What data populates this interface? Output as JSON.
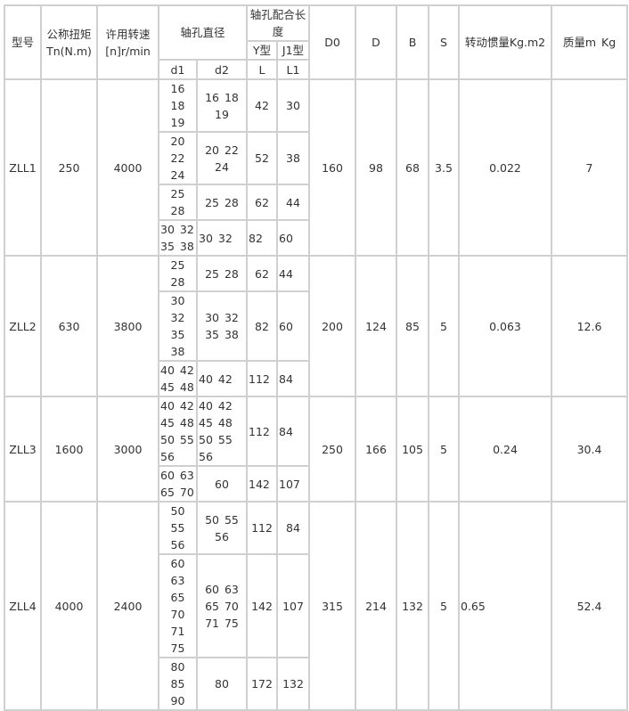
{
  "header": {
    "model": "型号",
    "torque": "公称扭矩Tn(N.m)",
    "speed": "许用转速[n]r/min",
    "bore_dia": "轴孔直径",
    "fit_len": "轴孔配合长度",
    "y_type": "Y型",
    "j1_type": "J1型",
    "d1": "d1",
    "d2": "d2",
    "L": "L",
    "L1": "L1",
    "D0": "D0",
    "D": "D",
    "B": "B",
    "S": "S",
    "inertia": "转动惯量Kg.m2",
    "mass": "质量m Kg"
  },
  "groups": [
    {
      "model": "ZLL1",
      "torque": "250",
      "speed": "4000",
      "D0": "160",
      "D": "98",
      "B": "68",
      "S": "3.5",
      "inertia": "0.022",
      "mass": "7",
      "sub": [
        {
          "d1": "16 18 19",
          "d2": "16 18 19",
          "L": "42",
          "L1": "30"
        },
        {
          "d1": "20 22 24",
          "d2": "20 22 24",
          "L": "52",
          "L1": "38"
        },
        {
          "d1": "25 28",
          "d2": "25 28",
          "L": "62",
          "L1": "44"
        },
        {
          "d1": "30 32 35 38",
          "d2": "30 32",
          "L": "82",
          "L1": "60"
        }
      ]
    },
    {
      "model": "ZLL2",
      "torque": "630",
      "speed": "3800",
      "D0": "200",
      "D": "124",
      "B": "85",
      "S": "5",
      "inertia": "0.063",
      "mass": "12.6",
      "sub": [
        {
          "d1": "25 28",
          "d2": "25 28",
          "L": "62",
          "L1": "44"
        },
        {
          "d1": "30 32 35 38",
          "d2": "30 32 35 38",
          "L": "82",
          "L1": "60"
        },
        {
          "d1": "40 42 45 48",
          "d2": "40 42",
          "L": "112",
          "L1": "84"
        }
      ]
    },
    {
      "model": "ZLL3",
      "torque": "1600",
      "speed": "3000",
      "D0": "250",
      "D": "166",
      "B": "105",
      "S": "5",
      "inertia": "0.24",
      "mass": "30.4",
      "sub": [
        {
          "d1": "40 42 45 48 50 55 56",
          "d2": "40 42 45 48 50 55 56",
          "L": "112",
          "L1": "84"
        },
        {
          "d1": "60 63 65 70",
          "d2": "60",
          "L": "142",
          "L1": "107"
        }
      ]
    },
    {
      "model": "ZLL4",
      "torque": "4000",
      "speed": "2400",
      "D0": "315",
      "D": "214",
      "B": "132",
      "S": "5",
      "inertia": "0.65",
      "mass": "52.4",
      "sub": [
        {
          "d1": "50 55 56",
          "d2": "50 55 56",
          "L": "112",
          "L1": "84"
        },
        {
          "d1": "60 63 65 70 71 75",
          "d2": "60 63 65 70 71 75",
          "L": "142",
          "L1": "107"
        },
        {
          "d1": "80 85 90",
          "d2": "80",
          "L": "172",
          "L1": "132"
        }
      ]
    }
  ]
}
